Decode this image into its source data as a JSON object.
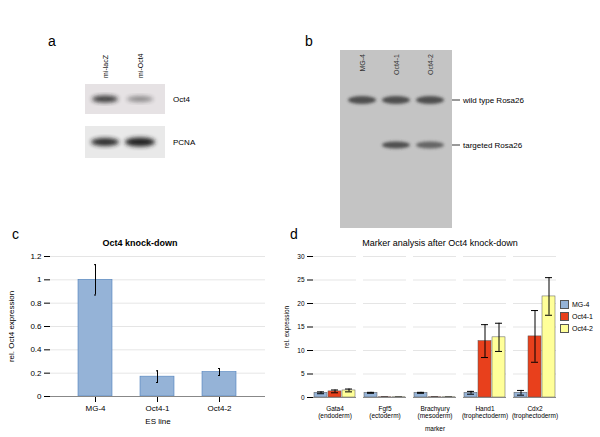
{
  "blots": [
    {
      "letter": "a",
      "lanes": [
        "mi-lacZ",
        "mi-Oct4"
      ],
      "rows": [
        "Oct4",
        "PCNA"
      ]
    },
    {
      "letter": "b",
      "lanes": [
        "MG-4",
        "Oct4-1",
        "Oct4-2"
      ],
      "bands": [
        "wild type Rosa26",
        "targeted Rosa26"
      ]
    }
  ],
  "chart_letters": [
    "c",
    "d"
  ],
  "chart_data": [
    {
      "type": "bar",
      "title": "Oct4 knock-down",
      "x_label": "ES line",
      "y_label": "rel. Oct4 expression",
      "categories": [
        "MG-4",
        "Oct4-1",
        "Oct4-2"
      ],
      "values": [
        1.0,
        0.17,
        0.21
      ],
      "errors": [
        0.13,
        0.05,
        0.03
      ],
      "color": "#95b3d7",
      "ylim": [
        0,
        1.2
      ],
      "yticks": [
        0,
        0.2,
        0.4,
        0.6,
        0.8,
        1,
        1.2
      ],
      "grid": true
    },
    {
      "type": "bar",
      "title": "Marker analysis after Oct4 knock-down",
      "x_label": "marker",
      "y_label": "rel. expression",
      "categories": [
        "Gata4\n(endoderm)",
        "Fgf5\n(ectoderm)",
        "Brachyury\n(mesoderm)",
        "Hand1\n(trophectoderm)",
        "Cdx2\n(trophectoderm)"
      ],
      "series": [
        {
          "name": "MG-4",
          "color": "#95b3d7",
          "values": [
            1,
            1,
            1,
            1,
            1
          ],
          "errors": [
            0.2,
            0.1,
            0.1,
            0.3,
            0.5
          ]
        },
        {
          "name": "Oct4-1",
          "color": "#e8401c",
          "values": [
            1.3,
            0.05,
            0.05,
            12,
            13
          ],
          "errors": [
            0.3,
            0,
            0,
            3.5,
            5.5
          ]
        },
        {
          "name": "Oct4-2",
          "color": "#ffff99",
          "values": [
            1.5,
            0.05,
            0.05,
            12.8,
            21.5
          ],
          "errors": [
            0.3,
            0,
            0,
            3,
            4
          ]
        }
      ],
      "ylim": [
        0,
        30
      ],
      "yticks": [
        0,
        5,
        10,
        15,
        20,
        25,
        30
      ],
      "grid": true,
      "legend": "right"
    }
  ]
}
